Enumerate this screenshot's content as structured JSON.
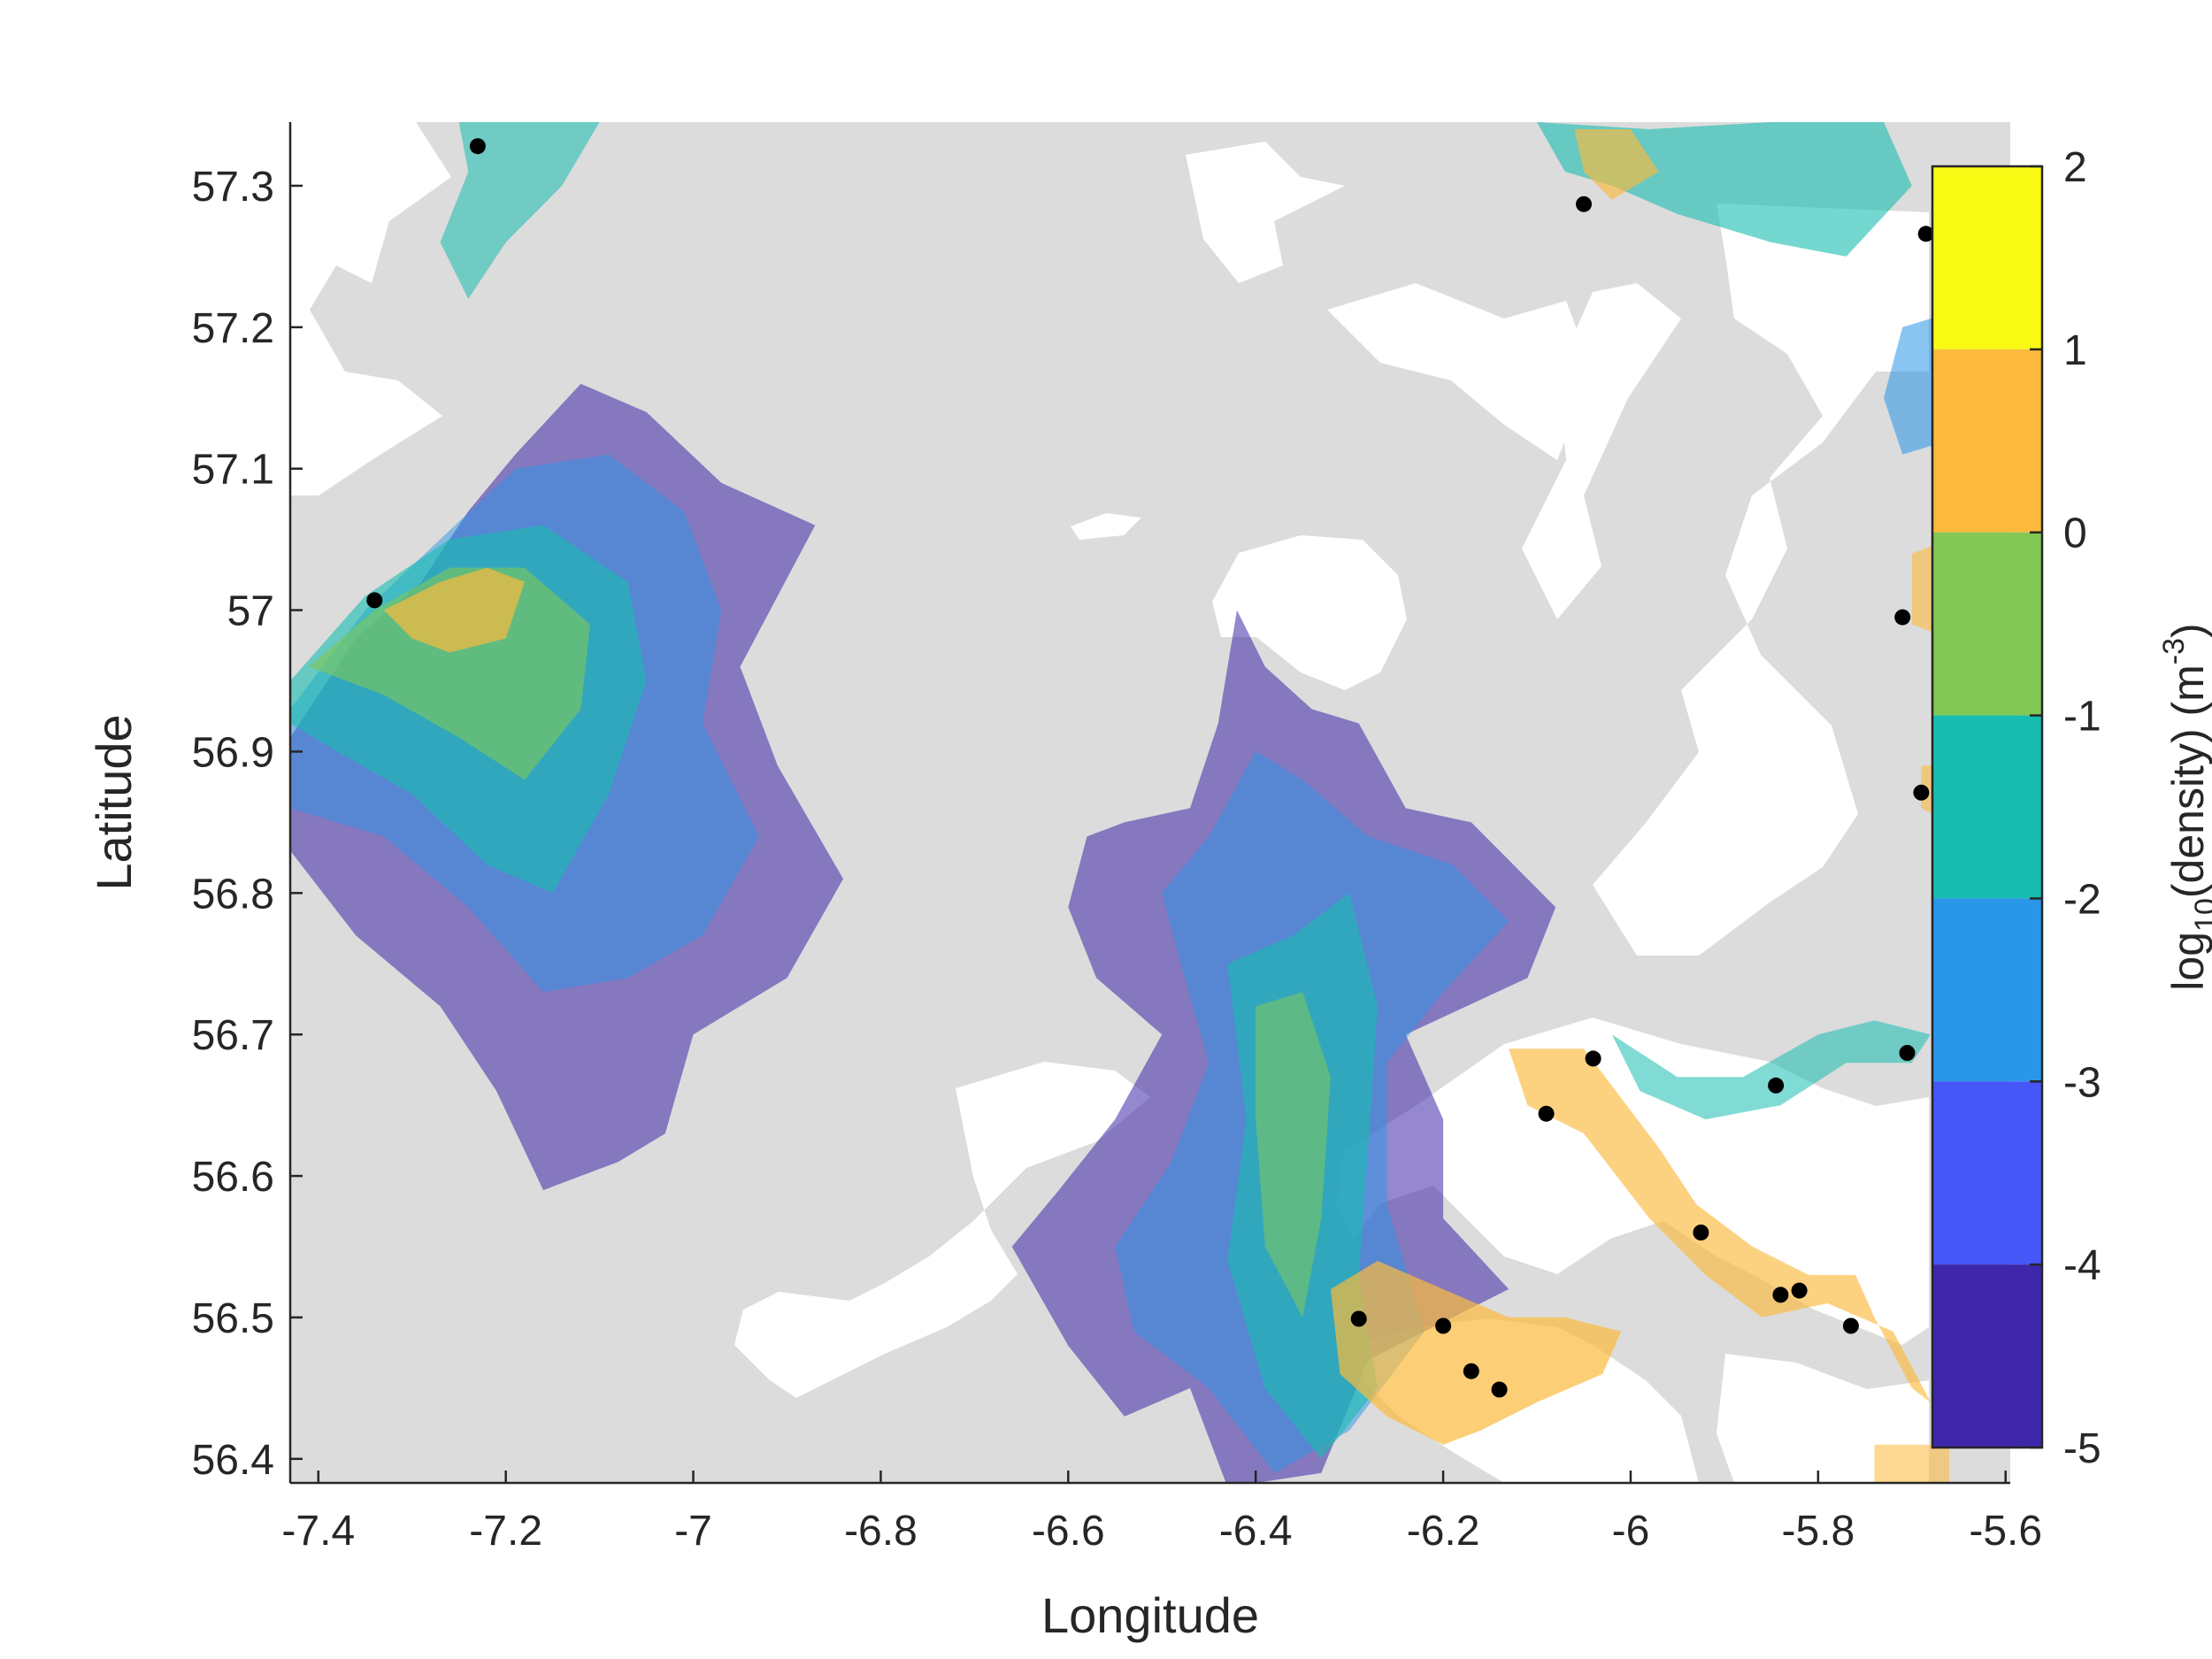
{
  "chart_data": {
    "type": "map",
    "xlabel": "Longitude",
    "ylabel": "Latitude",
    "xlim": [
      -7.43,
      -5.595
    ],
    "ylim": [
      56.383,
      57.345
    ],
    "x_ticks": [
      {
        "value": -7.4,
        "label": "-7.4"
      },
      {
        "value": -7.2,
        "label": "-7.2"
      },
      {
        "value": -7.0,
        "label": "-7"
      },
      {
        "value": -6.8,
        "label": "-6.8"
      },
      {
        "value": -6.6,
        "label": "-6.6"
      },
      {
        "value": -6.4,
        "label": "-6.4"
      },
      {
        "value": -6.2,
        "label": "-6.2"
      },
      {
        "value": -6.0,
        "label": "-6"
      },
      {
        "value": -5.8,
        "label": "-5.8"
      },
      {
        "value": -5.6,
        "label": "-5.6"
      }
    ],
    "y_ticks": [
      {
        "value": 56.4,
        "label": "56.4"
      },
      {
        "value": 56.5,
        "label": "56.5"
      },
      {
        "value": 56.6,
        "label": "56.6"
      },
      {
        "value": 56.7,
        "label": "56.7"
      },
      {
        "value": 56.8,
        "label": "56.8"
      },
      {
        "value": 56.9,
        "label": "56.9"
      },
      {
        "value": 57.0,
        "label": "57"
      },
      {
        "value": 57.1,
        "label": "57.1"
      },
      {
        "value": 57.2,
        "label": "57.2"
      },
      {
        "value": 57.3,
        "label": "57.3"
      }
    ],
    "colorbar": {
      "label": "log10(density) (m-3)",
      "label_parts": {
        "base": "log",
        "sub": "10",
        "mid": "(density) (m",
        "sup": "-3",
        "end": ")"
      },
      "range": [
        -5,
        2
      ],
      "tick_values": [
        2,
        1,
        0,
        -1,
        -2,
        -3,
        -4,
        -5
      ],
      "tick_labels": [
        "2",
        "1",
        "0",
        "-1",
        "-2",
        "-3",
        "-4",
        "-5"
      ],
      "bins": [
        {
          "from": 1,
          "to": 2,
          "color": "#f9fa14"
        },
        {
          "from": 0,
          "to": 1,
          "color": "#fbba3c"
        },
        {
          "from": -1,
          "to": 0,
          "color": "#81c855"
        },
        {
          "from": -2,
          "to": -1,
          "color": "#17bdb0"
        },
        {
          "from": -3,
          "to": -2,
          "color": "#2a96e8"
        },
        {
          "from": -4,
          "to": -3,
          "color": "#4657f8"
        },
        {
          "from": -5,
          "to": -4,
          "color": "#3e26a8"
        }
      ]
    },
    "colors": {
      "land": "#dcdcdc",
      "sea": "#ffffff",
      "marker": "#000000"
    },
    "sites": [
      {
        "lon": -7.23,
        "lat": 57.328
      },
      {
        "lon": -7.34,
        "lat": 57.007
      },
      {
        "lon": -6.05,
        "lat": 57.287
      },
      {
        "lon": -5.685,
        "lat": 57.266
      },
      {
        "lon": -5.71,
        "lat": 56.995
      },
      {
        "lon": -5.69,
        "lat": 56.871
      },
      {
        "lon": -6.04,
        "lat": 56.683
      },
      {
        "lon": -6.09,
        "lat": 56.644
      },
      {
        "lon": -5.845,
        "lat": 56.664
      },
      {
        "lon": -5.705,
        "lat": 56.687
      },
      {
        "lon": -5.925,
        "lat": 56.56
      },
      {
        "lon": -5.84,
        "lat": 56.516
      },
      {
        "lon": -5.82,
        "lat": 56.519
      },
      {
        "lon": -5.765,
        "lat": 56.494
      },
      {
        "lon": -6.29,
        "lat": 56.499
      },
      {
        "lon": -6.2,
        "lat": 56.494
      },
      {
        "lon": -6.17,
        "lat": 56.462
      },
      {
        "lon": -6.14,
        "lat": 56.449
      }
    ],
    "density_regions": [
      {
        "name": "west-plume-dark",
        "level": -4.5,
        "opacity": 0.55,
        "polygon": [
          [
            -7.43,
            56.91
          ],
          [
            -7.36,
            56.98
          ],
          [
            -7.29,
            57.02
          ],
          [
            -7.24,
            57.07
          ],
          [
            -7.19,
            57.11
          ],
          [
            -7.12,
            57.16
          ],
          [
            -7.05,
            57.14
          ],
          [
            -6.97,
            57.09
          ],
          [
            -6.87,
            57.06
          ],
          [
            -6.91,
            57.01
          ],
          [
            -6.95,
            56.96
          ],
          [
            -6.91,
            56.89
          ],
          [
            -6.84,
            56.81
          ],
          [
            -6.9,
            56.74
          ],
          [
            -7.0,
            56.7
          ],
          [
            -7.03,
            56.63
          ],
          [
            -7.08,
            56.61
          ],
          [
            -7.16,
            56.59
          ],
          [
            -7.21,
            56.66
          ],
          [
            -7.27,
            56.72
          ],
          [
            -7.36,
            56.77
          ],
          [
            -7.43,
            56.83
          ]
        ]
      },
      {
        "name": "west-plume-blue",
        "level": -2.5,
        "opacity": 0.5,
        "polygon": [
          [
            -7.43,
            56.93
          ],
          [
            -7.35,
            57.0
          ],
          [
            -7.27,
            57.05
          ],
          [
            -7.19,
            57.1
          ],
          [
            -7.09,
            57.11
          ],
          [
            -7.01,
            57.07
          ],
          [
            -6.97,
            57.0
          ],
          [
            -6.99,
            56.92
          ],
          [
            -6.93,
            56.84
          ],
          [
            -6.99,
            56.77
          ],
          [
            -7.07,
            56.74
          ],
          [
            -7.16,
            56.73
          ],
          [
            -7.24,
            56.79
          ],
          [
            -7.33,
            56.84
          ],
          [
            -7.43,
            56.86
          ]
        ]
      },
      {
        "name": "west-plume-teal",
        "level": -1.5,
        "opacity": 0.6,
        "polygon": [
          [
            -7.43,
            56.95
          ],
          [
            -7.35,
            57.01
          ],
          [
            -7.26,
            57.05
          ],
          [
            -7.16,
            57.06
          ],
          [
            -7.07,
            57.02
          ],
          [
            -7.05,
            56.95
          ],
          [
            -7.09,
            56.87
          ],
          [
            -7.15,
            56.8
          ],
          [
            -7.22,
            56.82
          ],
          [
            -7.3,
            56.87
          ],
          [
            -7.38,
            56.9
          ],
          [
            -7.43,
            56.92
          ]
        ]
      },
      {
        "name": "west-plume-green",
        "level": -0.5,
        "opacity": 0.6,
        "polygon": [
          [
            -7.41,
            56.96
          ],
          [
            -7.34,
            57.0
          ],
          [
            -7.26,
            57.03
          ],
          [
            -7.18,
            57.03
          ],
          [
            -7.11,
            56.99
          ],
          [
            -7.12,
            56.93
          ],
          [
            -7.18,
            56.88
          ],
          [
            -7.25,
            56.91
          ],
          [
            -7.33,
            56.94
          ]
        ]
      },
      {
        "name": "west-plume-orange",
        "level": 0.5,
        "opacity": 0.7,
        "polygon": [
          [
            -7.33,
            57.0
          ],
          [
            -7.27,
            57.02
          ],
          [
            -7.22,
            57.03
          ],
          [
            -7.18,
            57.02
          ],
          [
            -7.2,
            56.98
          ],
          [
            -7.26,
            56.97
          ],
          [
            -7.3,
            56.98
          ]
        ]
      },
      {
        "name": "north-inlet",
        "level": -1.5,
        "opacity": 0.55,
        "polygon": [
          [
            -7.25,
            57.345
          ],
          [
            -7.1,
            57.345
          ],
          [
            -7.14,
            57.3
          ],
          [
            -7.2,
            57.26
          ],
          [
            -7.24,
            57.22
          ],
          [
            -7.27,
            57.26
          ],
          [
            -7.24,
            57.31
          ]
        ]
      },
      {
        "name": "mid-plume-dark",
        "level": -4.5,
        "opacity": 0.55,
        "polygon": [
          [
            -6.54,
            56.85
          ],
          [
            -6.47,
            56.86
          ],
          [
            -6.44,
            56.92
          ],
          [
            -6.42,
            57.0
          ],
          [
            -6.39,
            56.96
          ],
          [
            -6.34,
            56.93
          ],
          [
            -6.29,
            56.92
          ],
          [
            -6.24,
            56.86
          ],
          [
            -6.17,
            56.85
          ],
          [
            -6.08,
            56.79
          ],
          [
            -6.11,
            56.74
          ],
          [
            -6.24,
            56.7
          ],
          [
            -6.2,
            56.64
          ],
          [
            -6.2,
            56.57
          ],
          [
            -6.13,
            56.52
          ],
          [
            -6.28,
            56.47
          ],
          [
            -6.33,
            56.39
          ],
          [
            -6.43,
            56.38
          ],
          [
            -6.47,
            56.45
          ],
          [
            -6.54,
            56.43
          ],
          [
            -6.6,
            56.48
          ],
          [
            -6.66,
            56.55
          ],
          [
            -6.61,
            56.59
          ],
          [
            -6.55,
            56.64
          ],
          [
            -6.5,
            56.7
          ],
          [
            -6.57,
            56.74
          ],
          [
            -6.6,
            56.79
          ],
          [
            -6.58,
            56.84
          ]
        ]
      },
      {
        "name": "mid-plume-blue",
        "level": -2.5,
        "opacity": 0.5,
        "polygon": [
          [
            -6.45,
            56.84
          ],
          [
            -6.4,
            56.9
          ],
          [
            -6.35,
            56.88
          ],
          [
            -6.28,
            56.84
          ],
          [
            -6.19,
            56.82
          ],
          [
            -6.13,
            56.78
          ],
          [
            -6.2,
            56.73
          ],
          [
            -6.26,
            56.68
          ],
          [
            -6.26,
            56.58
          ],
          [
            -6.22,
            56.49
          ],
          [
            -6.3,
            56.42
          ],
          [
            -6.38,
            56.39
          ],
          [
            -6.45,
            56.45
          ],
          [
            -6.53,
            56.49
          ],
          [
            -6.55,
            56.55
          ],
          [
            -6.49,
            56.61
          ],
          [
            -6.45,
            56.68
          ],
          [
            -6.48,
            56.75
          ],
          [
            -6.5,
            56.8
          ]
        ]
      },
      {
        "name": "mid-plume-teal",
        "level": -1.5,
        "opacity": 0.6,
        "polygon": [
          [
            -6.43,
            56.75
          ],
          [
            -6.36,
            56.77
          ],
          [
            -6.3,
            56.8
          ],
          [
            -6.27,
            56.72
          ],
          [
            -6.28,
            56.62
          ],
          [
            -6.29,
            56.53
          ],
          [
            -6.27,
            56.45
          ],
          [
            -6.33,
            56.4
          ],
          [
            -6.39,
            56.45
          ],
          [
            -6.43,
            56.54
          ],
          [
            -6.41,
            56.64
          ]
        ]
      },
      {
        "name": "mid-plume-green",
        "level": -0.5,
        "opacity": 0.55,
        "polygon": [
          [
            -6.4,
            56.72
          ],
          [
            -6.35,
            56.73
          ],
          [
            -6.32,
            56.67
          ],
          [
            -6.33,
            56.57
          ],
          [
            -6.35,
            56.5
          ],
          [
            -6.39,
            56.55
          ],
          [
            -6.4,
            56.64
          ]
        ]
      },
      {
        "name": "loch-sunart-basin",
        "level": 0.5,
        "opacity": 0.7,
        "polygon": [
          [
            -6.32,
            56.52
          ],
          [
            -6.27,
            56.54
          ],
          [
            -6.2,
            56.52
          ],
          [
            -6.13,
            56.5
          ],
          [
            -6.07,
            56.5
          ],
          [
            -6.01,
            56.49
          ],
          [
            -6.03,
            56.46
          ],
          [
            -6.1,
            56.44
          ],
          [
            -6.16,
            56.42
          ],
          [
            -6.2,
            56.41
          ],
          [
            -6.26,
            56.43
          ],
          [
            -6.31,
            56.46
          ]
        ]
      },
      {
        "name": "loch-leven-arm",
        "level": 0.5,
        "opacity": 0.65,
        "polygon": [
          [
            -6.13,
            56.69
          ],
          [
            -6.05,
            56.69
          ],
          [
            -5.97,
            56.62
          ],
          [
            -5.93,
            56.58
          ],
          [
            -5.87,
            56.55
          ],
          [
            -5.81,
            56.53
          ],
          [
            -5.76,
            56.53
          ],
          [
            -5.74,
            56.5
          ],
          [
            -5.7,
            56.45
          ],
          [
            -5.68,
            56.44
          ],
          [
            -5.72,
            56.49
          ],
          [
            -5.79,
            56.51
          ],
          [
            -5.86,
            56.5
          ],
          [
            -5.92,
            56.53
          ],
          [
            -5.98,
            56.57
          ],
          [
            -6.05,
            56.63
          ],
          [
            -6.11,
            56.65
          ]
        ]
      },
      {
        "name": "upper-east-arm",
        "level": -1.5,
        "opacity": 0.55,
        "polygon": [
          [
            -6.02,
            56.7
          ],
          [
            -5.95,
            56.67
          ],
          [
            -5.88,
            56.67
          ],
          [
            -5.8,
            56.7
          ],
          [
            -5.74,
            56.71
          ],
          [
            -5.68,
            56.7
          ],
          [
            -5.7,
            56.68
          ],
          [
            -5.77,
            56.68
          ],
          [
            -5.84,
            56.65
          ],
          [
            -5.92,
            56.64
          ],
          [
            -5.99,
            56.66
          ]
        ]
      },
      {
        "name": "ne-loch-north",
        "level": -1.5,
        "opacity": 0.6,
        "polygon": [
          [
            -6.1,
            57.345
          ],
          [
            -5.98,
            57.34
          ],
          [
            -5.85,
            57.345
          ],
          [
            -5.73,
            57.345
          ],
          [
            -5.7,
            57.3
          ],
          [
            -5.77,
            57.25
          ],
          [
            -5.85,
            57.26
          ],
          [
            -5.95,
            57.28
          ],
          [
            -6.02,
            57.3
          ],
          [
            -6.07,
            57.31
          ]
        ]
      },
      {
        "name": "ne-loch-north-yellow",
        "level": 0.5,
        "opacity": 0.65,
        "polygon": [
          [
            -6.06,
            57.34
          ],
          [
            -6.0,
            57.34
          ],
          [
            -5.97,
            57.31
          ],
          [
            -6.02,
            57.29
          ],
          [
            -6.05,
            57.31
          ]
        ]
      },
      {
        "name": "east-edge-a",
        "level": -2.5,
        "opacity": 0.55,
        "polygon": [
          [
            -5.71,
            57.2
          ],
          [
            -5.66,
            57.21
          ],
          [
            -5.66,
            57.12
          ],
          [
            -5.71,
            57.11
          ],
          [
            -5.73,
            57.15
          ]
        ]
      },
      {
        "name": "east-edge-b",
        "level": 0.5,
        "opacity": 0.6,
        "polygon": [
          [
            -5.7,
            57.04
          ],
          [
            -5.66,
            57.05
          ],
          [
            -5.66,
            56.98
          ],
          [
            -5.7,
            56.99
          ]
        ]
      },
      {
        "name": "east-edge-c",
        "level": 0.5,
        "opacity": 0.6,
        "polygon": [
          [
            -5.69,
            56.89
          ],
          [
            -5.66,
            56.89
          ],
          [
            -5.66,
            56.85
          ],
          [
            -5.69,
            56.86
          ]
        ]
      },
      {
        "name": "southeast-strip",
        "level": 0.5,
        "opacity": 0.55,
        "polygon": [
          [
            -5.74,
            56.41
          ],
          [
            -5.66,
            56.41
          ],
          [
            -5.66,
            56.383
          ],
          [
            -5.74,
            56.383
          ]
        ]
      }
    ]
  }
}
